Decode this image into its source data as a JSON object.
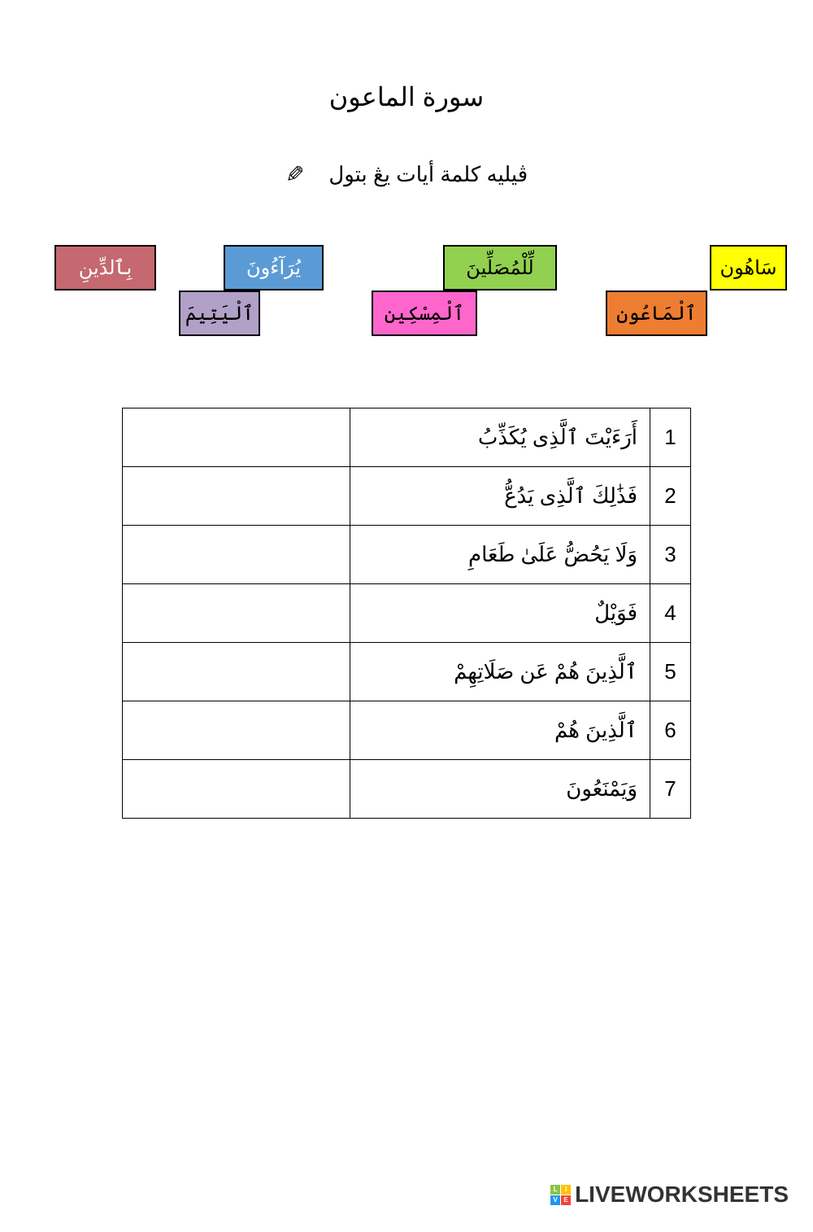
{
  "title": "سورة الماعون",
  "instruction": "ڤيليه کلمة أيات يڠ بتول",
  "word_bank": {
    "yellow": "سَاهُون",
    "green": "لِّلْمُصَلِّينَ",
    "blue": "يُرَآءُونَ",
    "red": "بِٱلدِّينِ",
    "orange": "ٱلْمَاعُون",
    "pink": "ٱلْمِسْكِين",
    "purple": "ٱلْيَتِيمَ"
  },
  "box_colors": {
    "yellow": "#ffff00",
    "green": "#92d050",
    "blue": "#5b9bd5",
    "red": "#c5686f",
    "orange": "#ed7d31",
    "pink": "#ff66cc",
    "purple": "#b1a0c7"
  },
  "rows": [
    {
      "num": "1",
      "text": "أَرَءَيْتَ ٱلَّذِى يُكَذِّبُ"
    },
    {
      "num": "2",
      "text": "فَذَٰلِكَ ٱلَّذِى يَدُعُّ"
    },
    {
      "num": "3",
      "text": "وَلَا يَحُضُّ عَلَىٰ طَعَامِ"
    },
    {
      "num": "4",
      "text": "فَوَيْلٌ"
    },
    {
      "num": "5",
      "text": "ٱلَّذِينَ هُمْ عَن صَلَاتِهِمْ"
    },
    {
      "num": "6",
      "text": "ٱلَّذِينَ هُمْ"
    },
    {
      "num": "7",
      "text": "وَيَمْنَعُونَ"
    }
  ],
  "watermark": "LIVEWORKSHEETS",
  "watermark_letters": {
    "l": "L",
    "i": "I",
    "v": "V",
    "e": "E"
  }
}
